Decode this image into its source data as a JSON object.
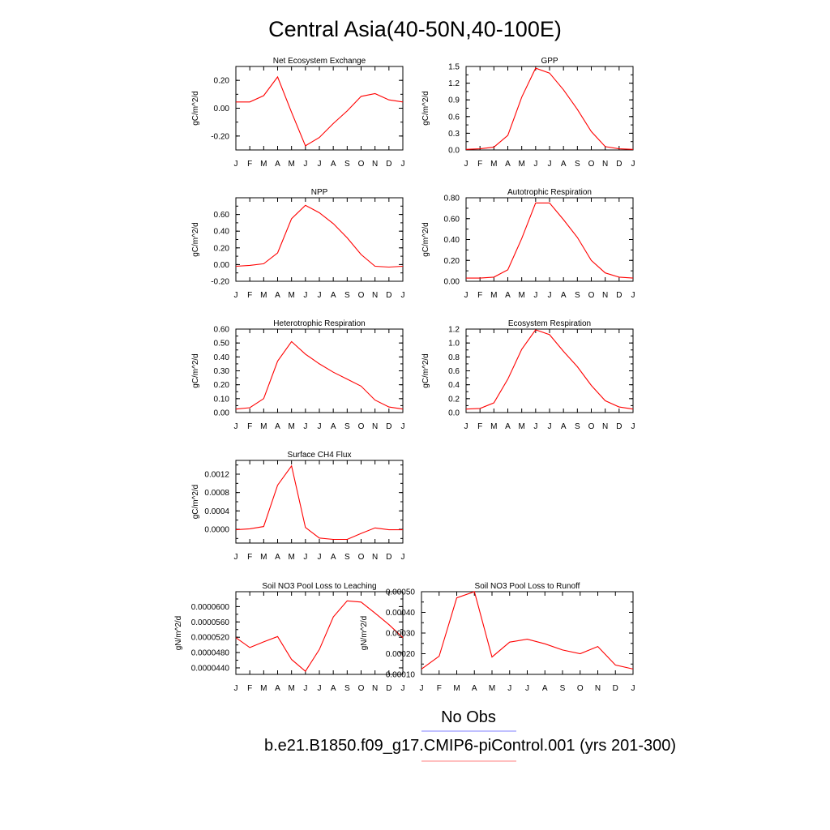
{
  "page": {
    "title": "Central Asia(40-50N,40-100E)",
    "legend": {
      "obs_label": "No Obs",
      "obs_color": "#8080ff",
      "model_label": "b.e21.B1850.f09_g17.CMIP6-piControl.001 (yrs 201-300)",
      "model_color": "#ff8080"
    },
    "line_color": "#ff0000"
  },
  "chart_data": [
    {
      "type": "line",
      "title": "Net Ecosystem Exchange",
      "ylabel": "gC/m^2/d",
      "xlabel": "",
      "categories": [
        "J",
        "F",
        "M",
        "A",
        "M",
        "J",
        "J",
        "A",
        "S",
        "O",
        "N",
        "D",
        "J"
      ],
      "ylim": [
        -0.3,
        0.3
      ],
      "yticks": [
        -0.2,
        0.0,
        0.2
      ],
      "yticklabels": [
        "-0.20",
        "0.00",
        "0.20"
      ],
      "values": [
        0.045,
        0.045,
        0.09,
        0.225,
        -0.03,
        -0.27,
        -0.21,
        -0.11,
        -0.02,
        0.085,
        0.105,
        0.06,
        0.045
      ]
    },
    {
      "type": "line",
      "title": "GPP",
      "ylabel": "gC/m^2/d",
      "xlabel": "",
      "categories": [
        "J",
        "F",
        "M",
        "A",
        "M",
        "J",
        "J",
        "A",
        "S",
        "O",
        "N",
        "D",
        "J"
      ],
      "ylim": [
        0.0,
        1.5
      ],
      "yticks": [
        0.0,
        0.3,
        0.6,
        0.9,
        1.2,
        1.5
      ],
      "yticklabels": [
        "0.0",
        "0.3",
        "0.6",
        "0.9",
        "1.2",
        "1.5"
      ],
      "values": [
        0.01,
        0.02,
        0.05,
        0.26,
        0.95,
        1.47,
        1.38,
        1.08,
        0.73,
        0.33,
        0.06,
        0.02,
        0.01
      ]
    },
    {
      "type": "line",
      "title": "NPP",
      "ylabel": "gC/m^2/d",
      "xlabel": "",
      "categories": [
        "J",
        "F",
        "M",
        "A",
        "M",
        "J",
        "J",
        "A",
        "S",
        "O",
        "N",
        "D",
        "J"
      ],
      "ylim": [
        -0.2,
        0.8
      ],
      "yticks": [
        -0.2,
        0.0,
        0.2,
        0.4,
        0.6
      ],
      "yticklabels": [
        "-0.20",
        "0.00",
        "0.20",
        "0.40",
        "0.60"
      ],
      "values": [
        -0.02,
        -0.01,
        0.01,
        0.14,
        0.55,
        0.71,
        0.62,
        0.49,
        0.32,
        0.12,
        -0.02,
        -0.03,
        -0.02
      ]
    },
    {
      "type": "line",
      "title": "Autotrophic Respiration",
      "ylabel": "gC/m^2/d",
      "xlabel": "",
      "categories": [
        "J",
        "F",
        "M",
        "A",
        "M",
        "J",
        "J",
        "A",
        "S",
        "O",
        "N",
        "D",
        "J"
      ],
      "ylim": [
        0.0,
        0.8
      ],
      "yticks": [
        0.0,
        0.2,
        0.4,
        0.6,
        0.8
      ],
      "yticklabels": [
        "0.00",
        "0.20",
        "0.40",
        "0.60",
        "0.80"
      ],
      "values": [
        0.03,
        0.03,
        0.04,
        0.11,
        0.41,
        0.75,
        0.75,
        0.59,
        0.42,
        0.2,
        0.08,
        0.04,
        0.03
      ]
    },
    {
      "type": "line",
      "title": "Heterotrophic Respiration",
      "ylabel": "gC/m^2/d",
      "xlabel": "",
      "categories": [
        "J",
        "F",
        "M",
        "A",
        "M",
        "J",
        "J",
        "A",
        "S",
        "O",
        "N",
        "D",
        "J"
      ],
      "ylim": [
        0.0,
        0.6
      ],
      "yticks": [
        0.0,
        0.1,
        0.2,
        0.3,
        0.4,
        0.5,
        0.6
      ],
      "yticklabels": [
        "0.00",
        "0.10",
        "0.20",
        "0.30",
        "0.40",
        "0.50",
        "0.60"
      ],
      "values": [
        0.025,
        0.035,
        0.1,
        0.37,
        0.51,
        0.42,
        0.35,
        0.29,
        0.24,
        0.19,
        0.09,
        0.04,
        0.025
      ]
    },
    {
      "type": "line",
      "title": "Ecosystem Respiration",
      "ylabel": "gC/m^2/d",
      "xlabel": "",
      "categories": [
        "J",
        "F",
        "M",
        "A",
        "M",
        "J",
        "J",
        "A",
        "S",
        "O",
        "N",
        "D",
        "J"
      ],
      "ylim": [
        0.0,
        1.2
      ],
      "yticks": [
        0.0,
        0.2,
        0.4,
        0.6,
        0.8,
        1.0,
        1.2
      ],
      "yticklabels": [
        "0.0",
        "0.2",
        "0.4",
        "0.6",
        "0.8",
        "1.0",
        "1.2"
      ],
      "values": [
        0.05,
        0.06,
        0.14,
        0.48,
        0.91,
        1.19,
        1.12,
        0.88,
        0.66,
        0.39,
        0.17,
        0.08,
        0.05
      ]
    },
    {
      "type": "line",
      "title": "Surface CH4 Flux",
      "ylabel": "gC/m^2/d",
      "xlabel": "",
      "categories": [
        "J",
        "F",
        "M",
        "A",
        "M",
        "J",
        "J",
        "A",
        "S",
        "O",
        "N",
        "D",
        "J"
      ],
      "ylim": [
        -0.0003,
        0.0015
      ],
      "yticks": [
        0.0,
        0.0004,
        0.0008,
        0.0012
      ],
      "yticklabels": [
        "0.0000",
        "0.0004",
        "0.0008",
        "0.0012"
      ],
      "values": [
        -1e-05,
        1e-05,
        6e-05,
        0.00096,
        0.00138,
        4e-05,
        -0.00019,
        -0.00022,
        -0.00022,
        -9e-05,
        3e-05,
        -1e-05,
        -1e-05
      ]
    },
    {
      "type": "line",
      "title": "Soil NO3 Pool Loss to Leaching",
      "ylabel": "gN/m^2/d",
      "xlabel": "",
      "categories": [
        "J",
        "F",
        "M",
        "A",
        "M",
        "J",
        "J",
        "A",
        "S",
        "O",
        "N",
        "D",
        "J"
      ],
      "ylim": [
        4.23e-05,
        6.39e-05
      ],
      "yticks": [
        4.4e-05,
        4.8e-05,
        5.2e-05,
        5.6e-05,
        6e-05
      ],
      "yticklabels": [
        "0.0000440",
        "0.0000480",
        "0.0000520",
        "0.0000560",
        "0.0000600"
      ],
      "values": [
        5.19e-05,
        4.93e-05,
        5.08e-05,
        5.22e-05,
        4.62e-05,
        4.31e-05,
        4.88e-05,
        5.73e-05,
        6.15e-05,
        6.12e-05,
        5.83e-05,
        5.53e-05,
        5.19e-05
      ]
    },
    {
      "type": "line",
      "title": "Soil NO3 Pool Loss to Runoff",
      "ylabel": "gN/m^2/d",
      "xlabel": "",
      "categories": [
        "J",
        "F",
        "M",
        "A",
        "M",
        "J",
        "J",
        "A",
        "S",
        "O",
        "N",
        "D",
        "J"
      ],
      "ylim": [
        0.0001,
        0.0005
      ],
      "yticks": [
        0.0001,
        0.0002,
        0.0003,
        0.0004,
        0.0005
      ],
      "yticklabels": [
        "0.00010",
        "0.00020",
        "0.00030",
        "0.00040",
        "0.00050"
      ],
      "values": [
        0.000126,
        0.000188,
        0.00047,
        0.0005,
        0.000184,
        0.000256,
        0.00027,
        0.000248,
        0.000218,
        0.0002,
        0.000235,
        0.000145,
        0.000126
      ]
    }
  ]
}
